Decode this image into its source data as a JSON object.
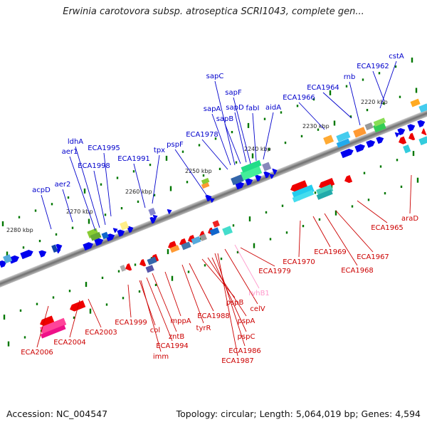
{
  "title": "Erwinia carotovora subsp. atroseptica SCRI1043, complete gen...",
  "footer": {
    "accession": "Accession: NC_004547",
    "summary": "Topology: circular; Length: 5,064,019 bp; Genes: 4,594"
  },
  "colors": {
    "forward_label": "#0000cc",
    "reverse_label": "#cc0000",
    "rna_label": "#ff99cc",
    "forward_arrow": "#0000ee",
    "reverse_arrow": "#ee0000",
    "backbone": "#777777",
    "tick": "#007700"
  },
  "scale_labels": [
    "2280 kbp",
    "2270 kbp",
    "2260 kbp",
    "2250 kbp",
    "2240 kbp",
    "2230 kbp",
    "2220 kbp"
  ],
  "top_labels": [
    "acpD",
    "aer2",
    "aer1",
    "ldhA",
    "ECA1998",
    "ECA1995",
    "ECA1991",
    "tpx",
    "pspF",
    "ECA1978",
    "sapA",
    "sapC",
    "sapB",
    "sapF",
    "sapD",
    "fabI",
    "aidA",
    "ECA1966",
    "ECA1964",
    "rnb",
    "ECA1962",
    "cstA"
  ],
  "bottom_labels": [
    "ECA2006",
    "ECA2004",
    "ECA2003",
    "ECA1999",
    "col",
    "imm",
    "ECA1994",
    "zntB",
    "mppA",
    "tyrR",
    "ECA1988",
    "pspB",
    "pspA",
    "pspC",
    "ECA1986",
    "ECA1987",
    "celV",
    "ryhB1",
    "ECA1979",
    "ECA1970",
    "ECA1969",
    "ECA1968",
    "ECA1967",
    "ECA1965",
    "araD"
  ]
}
